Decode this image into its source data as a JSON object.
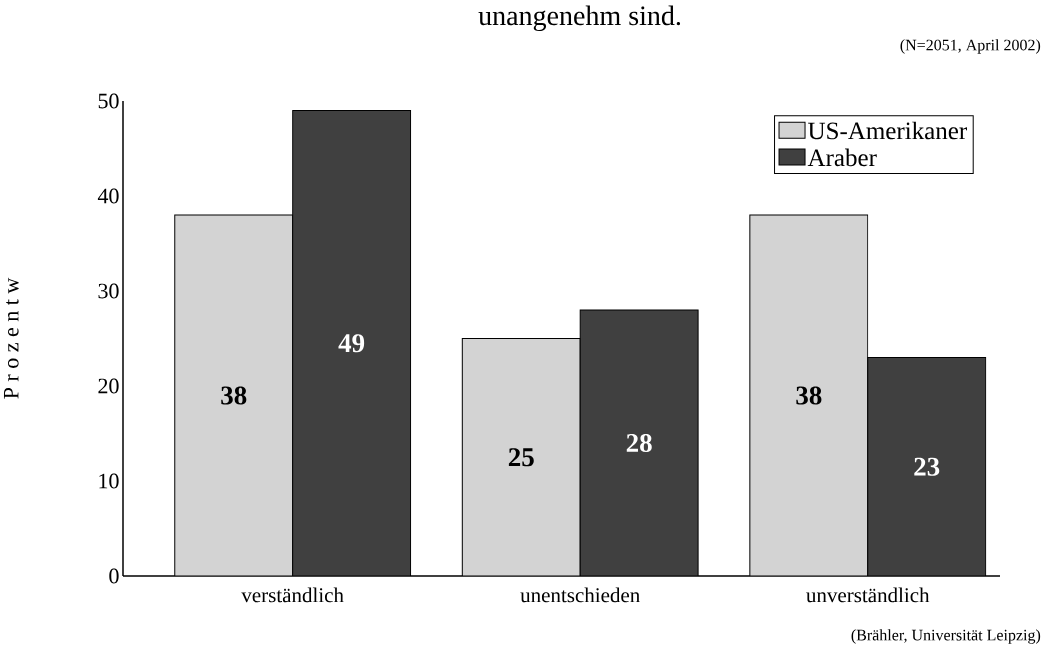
{
  "chart_data": {
    "type": "bar",
    "title": "unangenehm sind.",
    "ylabel": "P r o z e n t w",
    "categories": [
      "verständlich",
      "unentschieden",
      "unverständlich"
    ],
    "series": [
      {
        "name": "US-Amerikaner",
        "color": "#d3d3d3",
        "values": [
          38,
          25,
          38
        ]
      },
      {
        "name": "Araber",
        "color": "#404040",
        "values": [
          49,
          28,
          23
        ]
      }
    ],
    "ylim": [
      0,
      50
    ],
    "yticks": [
      0,
      10,
      20,
      30,
      40,
      50
    ],
    "data_labels": true,
    "legend": "top right",
    "grid": false,
    "annotations": [
      "(N=2051, April 2002)",
      "(Brähler, Universität Leipzig)"
    ]
  }
}
